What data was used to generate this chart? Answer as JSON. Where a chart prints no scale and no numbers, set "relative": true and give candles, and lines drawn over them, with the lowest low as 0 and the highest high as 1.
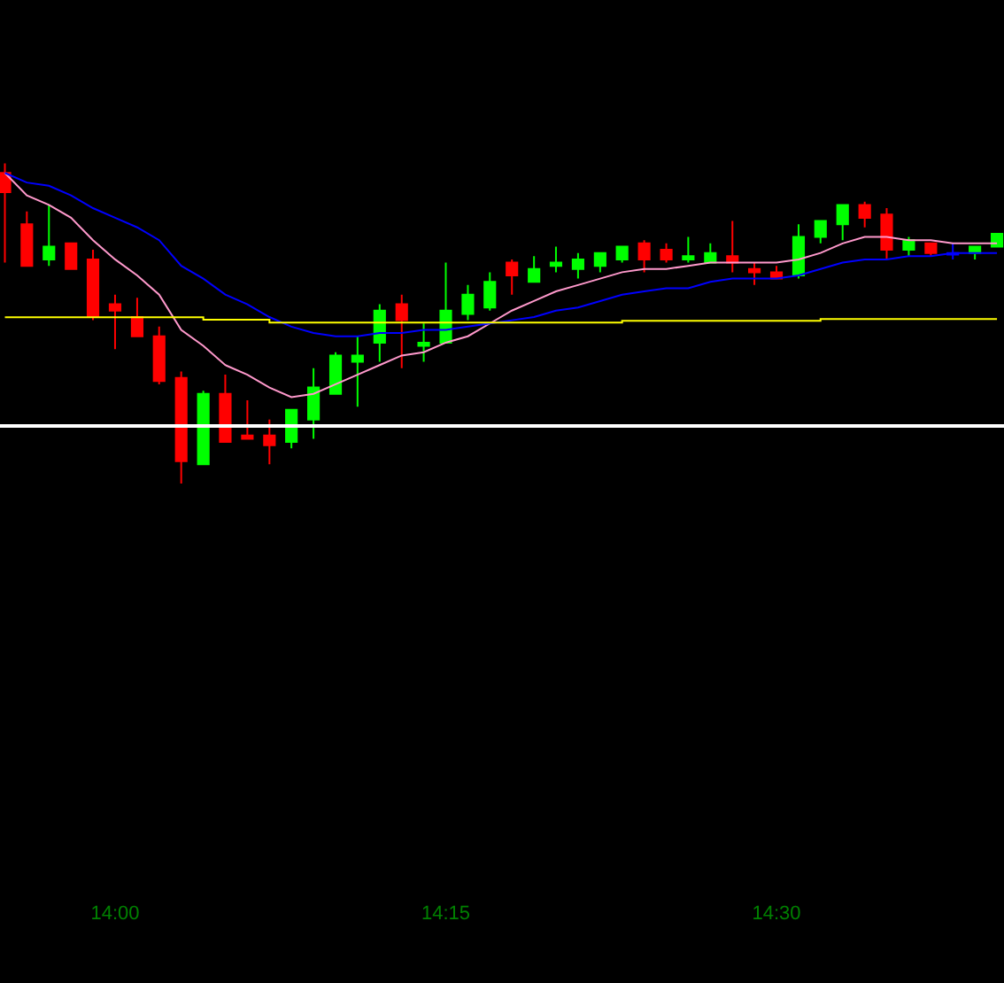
{
  "chart_data": {
    "type": "candlestick",
    "relative": true,
    "x": [
      13.9167,
      13.9333,
      13.95,
      13.9667,
      13.9833,
      14,
      14.0167,
      14.0333,
      14.05,
      14.0667,
      14.0833,
      14.1,
      14.1167,
      14.1333,
      14.15,
      14.1667,
      14.1833,
      14.2,
      14.2167,
      14.2333,
      14.25,
      14.2667,
      14.2833,
      14.3,
      14.3167,
      14.3333,
      14.35,
      14.3667,
      14.3833,
      14.4,
      14.4167,
      14.4333,
      14.45,
      14.4667,
      14.4833,
      14.5,
      14.5167,
      14.5333,
      14.55,
      14.5667,
      14.5833,
      14.6,
      14.6167,
      14.6333,
      14.65,
      14.6667
    ],
    "xlim": [
      13.913,
      14.672
    ],
    "xticks": [
      {
        "value": 14,
        "label": "14:00"
      },
      {
        "value": 14.25,
        "label": "14:15"
      },
      {
        "value": 14.5,
        "label": "14:30"
      }
    ],
    "ohlc": [
      [
        0.97,
        1.0,
        0.69,
        0.91
      ],
      [
        0.81,
        0.85,
        0.68,
        0.68
      ],
      [
        0.7,
        0.87,
        0.68,
        0.74
      ],
      [
        0.75,
        0.75,
        0.67,
        0.67
      ],
      [
        0.7,
        0.73,
        0.51,
        0.52
      ],
      [
        0.56,
        0.59,
        0.42,
        0.54
      ],
      [
        0.52,
        0.58,
        0.46,
        0.46
      ],
      [
        0.46,
        0.49,
        0.31,
        0.32
      ],
      [
        0.33,
        0.35,
        0,
        0.07
      ],
      [
        0.06,
        0.29,
        0.06,
        0.28
      ],
      [
        0.28,
        0.34,
        0.13,
        0.13
      ],
      [
        0.15,
        0.26,
        0.14,
        0.14
      ],
      [
        0.15,
        0.2,
        0.06,
        0.12
      ],
      [
        0.13,
        0.23,
        0.11,
        0.23
      ],
      [
        0.2,
        0.36,
        0.14,
        0.3
      ],
      [
        0.28,
        0.41,
        0.28,
        0.4
      ],
      [
        0.38,
        0.46,
        0.24,
        0.4
      ],
      [
        0.44,
        0.56,
        0.38,
        0.54
      ],
      [
        0.56,
        0.59,
        0.36,
        0.51
      ],
      [
        0.43,
        0.5,
        0.38,
        0.44
      ],
      [
        0.44,
        0.69,
        0.44,
        0.54
      ],
      [
        0.53,
        0.62,
        0.51,
        0.59
      ],
      [
        0.55,
        0.66,
        0.54,
        0.63
      ],
      [
        0.69,
        0.7,
        0.59,
        0.65
      ],
      [
        0.63,
        0.71,
        0.63,
        0.67
      ],
      [
        0.68,
        0.74,
        0.66,
        0.69
      ],
      [
        0.67,
        0.72,
        0.64,
        0.7
      ],
      [
        0.68,
        0.72,
        0.66,
        0.72
      ],
      [
        0.7,
        0.74,
        0.69,
        0.74
      ],
      [
        0.75,
        0.76,
        0.66,
        0.7
      ],
      [
        0.73,
        0.75,
        0.69,
        0.7
      ],
      [
        0.7,
        0.77,
        0.69,
        0.71
      ],
      [
        0.69,
        0.75,
        0.69,
        0.72
      ],
      [
        0.71,
        0.82,
        0.66,
        0.69
      ],
      [
        0.67,
        0.69,
        0.62,
        0.66
      ],
      [
        0.66,
        0.68,
        0.64,
        0.64
      ],
      [
        0.65,
        0.81,
        0.64,
        0.77
      ],
      [
        0.77,
        0.82,
        0.75,
        0.82
      ],
      [
        0.81,
        0.87,
        0.76,
        0.87
      ],
      [
        0.87,
        0.88,
        0.8,
        0.83
      ],
      [
        0.84,
        0.86,
        0.7,
        0.73
      ],
      [
        0.73,
        0.77,
        0.71,
        0.76
      ],
      [
        0.75,
        0.75,
        0.71,
        0.72
      ],
      [
        0.72,
        0.75,
        0.7,
        0.715
      ],
      [
        0.72,
        0.74,
        0.7,
        0.74
      ],
      [
        0.74,
        0.78,
        0.74,
        0.78
      ]
    ],
    "colors": [
      "#ff0000",
      "#ff0000",
      "#00ff00",
      "#ff0000",
      "#ff0000",
      "#ff0000",
      "#ff0000",
      "#ff0000",
      "#ff0000",
      "#00ff00",
      "#ff0000",
      "#ff0000",
      "#ff0000",
      "#00ff00",
      "#00ff00",
      "#00ff00",
      "#00ff00",
      "#00ff00",
      "#ff0000",
      "#00ff00",
      "#00ff00",
      "#00ff00",
      "#00ff00",
      "#ff0000",
      "#00ff00",
      "#00ff00",
      "#00ff00",
      "#00ff00",
      "#00ff00",
      "#ff0000",
      "#ff0000",
      "#00ff00",
      "#00ff00",
      "#ff0000",
      "#ff0000",
      "#ff0000",
      "#00ff00",
      "#00ff00",
      "#00ff00",
      "#ff0000",
      "#ff0000",
      "#00ff00",
      "#ff0000",
      "#0000ff",
      "#00ff00",
      "#00ff00"
    ],
    "series": [
      {
        "type": "line",
        "color": "#ff99cc",
        "values": [
          0.97,
          0.9,
          0.87,
          0.83,
          0.76,
          0.7,
          0.65,
          0.59,
          0.48,
          0.43,
          0.37,
          0.34,
          0.3,
          0.27,
          0.28,
          0.31,
          0.34,
          0.37,
          0.4,
          0.41,
          0.44,
          0.46,
          0.5,
          0.54,
          0.57,
          0.6,
          0.62,
          0.64,
          0.66,
          0.67,
          0.67,
          0.68,
          0.69,
          0.69,
          0.69,
          0.69,
          0.7,
          0.72,
          0.75,
          0.77,
          0.77,
          0.76,
          0.76,
          0.75,
          0.75,
          0.75
        ]
      },
      {
        "type": "line",
        "color": "#0000ff",
        "values": [
          0.97,
          0.94,
          0.93,
          0.9,
          0.86,
          0.83,
          0.8,
          0.76,
          0.68,
          0.64,
          0.59,
          0.56,
          0.52,
          0.49,
          0.47,
          0.46,
          0.46,
          0.47,
          0.47,
          0.48,
          0.48,
          0.49,
          0.5,
          0.51,
          0.52,
          0.54,
          0.55,
          0.57,
          0.59,
          0.6,
          0.61,
          0.61,
          0.63,
          0.64,
          0.64,
          0.64,
          0.65,
          0.67,
          0.69,
          0.7,
          0.7,
          0.71,
          0.71,
          0.72,
          0.72,
          0.72
        ]
      },
      {
        "type": "step",
        "color": "#ffff00",
        "values": [
          0.519,
          0.519,
          0.519,
          0.519,
          0.519,
          0.519,
          0.519,
          0.519,
          0.519,
          0.512,
          0.512,
          0.512,
          0.503,
          0.503,
          0.503,
          0.503,
          0.503,
          0.503,
          0.503,
          0.503,
          0.503,
          0.503,
          0.503,
          0.503,
          0.503,
          0.503,
          0.503,
          0.503,
          0.508,
          0.508,
          0.508,
          0.508,
          0.508,
          0.508,
          0.508,
          0.508,
          0.508,
          0.514,
          0.514,
          0.514,
          0.514,
          0.514,
          0.514,
          0.514,
          0.514,
          0.514
        ]
      }
    ],
    "ref_lines": [
      {
        "axis": "y",
        "value": 0.18,
        "color": "#ffffff"
      }
    ],
    "tick_labels": "x",
    "grid": false
  }
}
